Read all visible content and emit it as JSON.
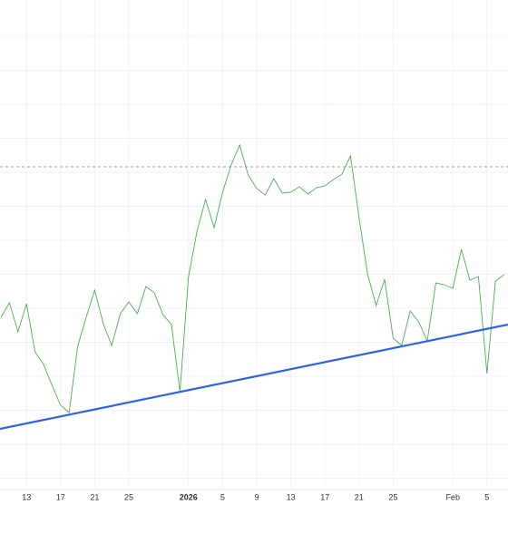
{
  "chart_data": {
    "type": "line",
    "categories": [
      null,
      null,
      null,
      "13",
      null,
      null,
      null,
      "17",
      null,
      null,
      null,
      "21",
      null,
      null,
      null,
      "25",
      null,
      null,
      null,
      null,
      null,
      null,
      "2026",
      null,
      null,
      null,
      "5",
      null,
      null,
      null,
      "9",
      null,
      null,
      null,
      "13",
      null,
      null,
      null,
      "17",
      null,
      null,
      null,
      "21",
      null,
      null,
      null,
      "25",
      null,
      null,
      null,
      null,
      null,
      null,
      "Feb",
      null,
      null,
      null,
      "5",
      null,
      null
    ],
    "series": [
      {
        "color": "#4caf50",
        "values": [
          250,
          266,
          234,
          265,
          212,
          198,
          175,
          153,
          145,
          218,
          250,
          280,
          243,
          219,
          254,
          267,
          254,
          284,
          277,
          253,
          242,
          168,
          295,
          345,
          380,
          349,
          388,
          418,
          440,
          407,
          392,
          385,
          403,
          387,
          388,
          394,
          386,
          393,
          395,
          402,
          408,
          428,
          360,
          298,
          263,
          292,
          227,
          219,
          257,
          245,
          224,
          288,
          286,
          282,
          325,
          291,
          295,
          188,
          290,
          297
        ]
      }
    ],
    "ylim": [
      60,
      600
    ],
    "reference_line": {
      "value": 416,
      "color": "#9e9e9e"
    },
    "trend_line": {
      "values": [
        127,
        242
      ],
      "color": "#2f63e6"
    },
    "grid": true
  }
}
